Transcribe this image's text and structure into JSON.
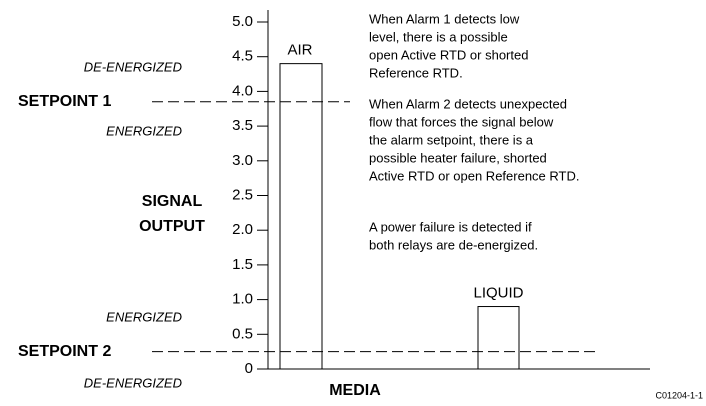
{
  "chart_data": {
    "type": "bar",
    "categories": [
      "AIR",
      "LIQUID"
    ],
    "values": [
      4.4,
      0.9
    ],
    "color": "#ffffff",
    "ylim": [
      0,
      5
    ],
    "yticks": [
      0,
      0.5,
      {
        "value": 1,
        "label": "1.0"
      },
      1.5,
      {
        "value": 2,
        "label": "2.0"
      },
      2.5,
      {
        "value": 3,
        "label": "3.0"
      },
      3.5,
      {
        "value": 4,
        "label": "4.0"
      },
      4.5,
      {
        "value": 5,
        "label": "5.0"
      }
    ],
    "ylabel": [
      "SIGNAL",
      "OUTPUT"
    ],
    "xlabel": "MEDIA",
    "setpoints": [
      {
        "label": "SETPOINT 1",
        "value": 3.85
      },
      {
        "label": "SETPOINT 2",
        "value": 0.25
      }
    ],
    "zones": [
      "DE-ENERGIZED",
      "ENERGIZED",
      "ENERGIZED",
      "DE-ENERGIZED"
    ],
    "notes": [
      [
        "When Alarm 1 detects low",
        "level, there is a possible",
        "open Active RTD or shorted",
        "Reference RTD."
      ],
      [
        "When Alarm 2 detects unexpected",
        "flow that forces the signal below",
        "the alarm setpoint, there is a",
        "possible heater failure, shorted",
        "Active RTD or open Reference RTD."
      ],
      [
        "A power failure is detected if",
        "both relays are de-energized."
      ]
    ],
    "code": "C01204-1-1"
  }
}
